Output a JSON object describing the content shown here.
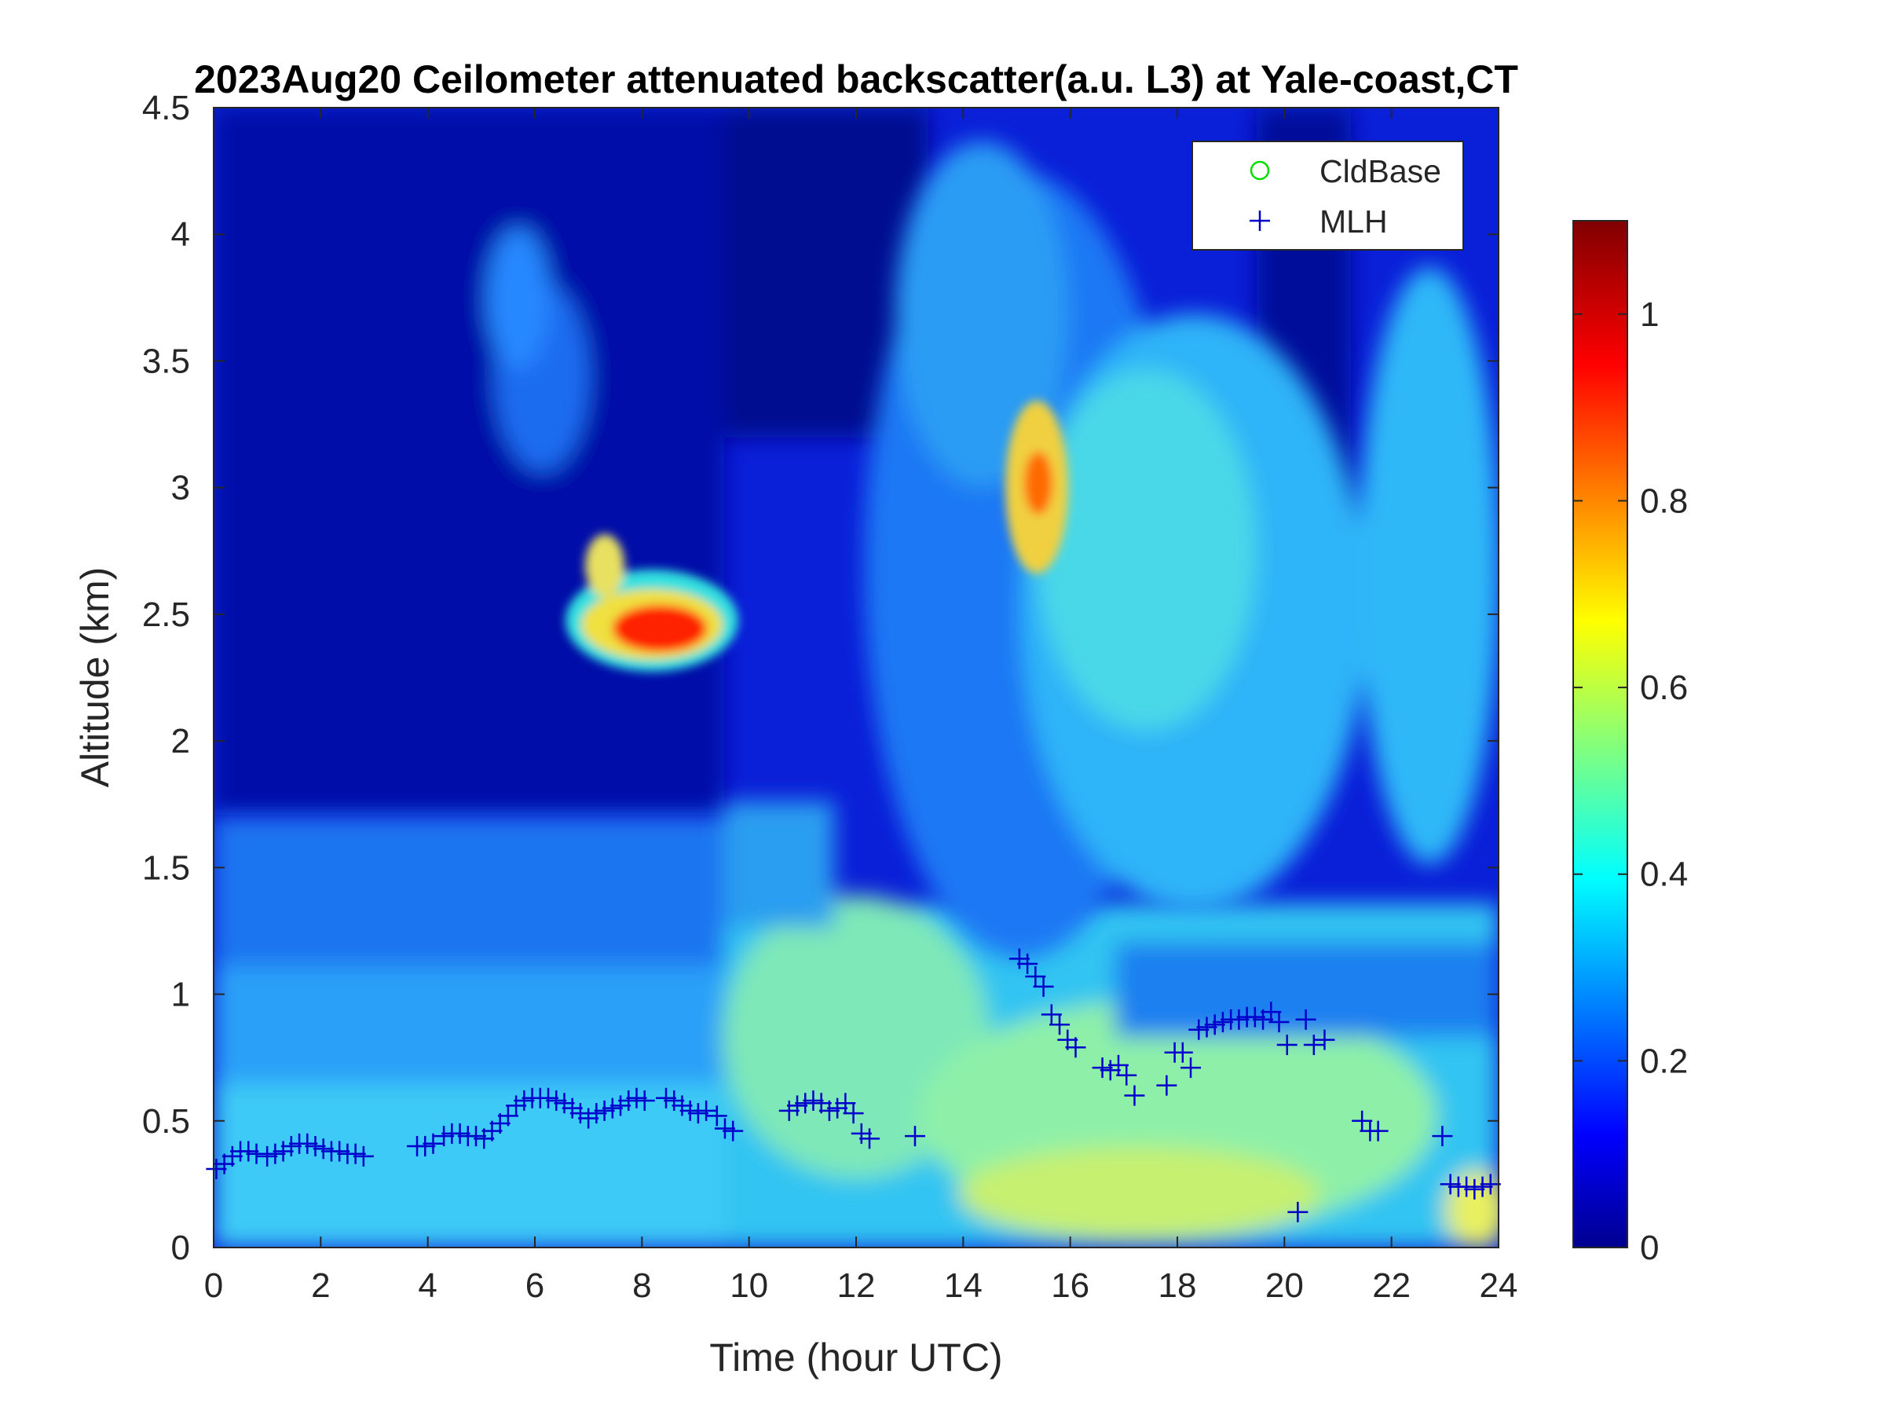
{
  "chart_data": {
    "type": "heatmap",
    "title": "2023Aug20 Ceilometer attenuated backscatter(a.u. L3) at Yale-coast,CT",
    "xlabel": "Time (hour UTC)",
    "ylabel": "Altitude (km)",
    "xlim": [
      0,
      24
    ],
    "ylim": [
      0,
      4.5
    ],
    "xticks": [
      "0",
      "2",
      "4",
      "6",
      "8",
      "10",
      "12",
      "14",
      "16",
      "18",
      "20",
      "22",
      "24"
    ],
    "yticks": [
      "0",
      "0.5",
      "1",
      "1.5",
      "2",
      "2.5",
      "3",
      "3.5",
      "4",
      "4.5"
    ],
    "colorbar": {
      "range": [
        0,
        1.1
      ],
      "ticks": [
        "0",
        "0.2",
        "0.4",
        "0.6",
        "0.8",
        "1"
      ],
      "colormap": "jet"
    },
    "legend": {
      "placement": "top-right",
      "entries": [
        {
          "label": "CldBase",
          "marker": "circle",
          "color": "#00e000"
        },
        {
          "label": "MLH",
          "marker": "plus",
          "color": "#0000cc"
        }
      ]
    },
    "backscatter_features": [
      {
        "feature": "elevated aerosol layer",
        "time_range": [
          7.0,
          9.3
        ],
        "altitude_range": [
          2.2,
          2.7
        ],
        "peak_value": 1.0
      },
      {
        "feature": "elevated plume",
        "time_range": [
          14.5,
          16.5
        ],
        "altitude_range": [
          2.6,
          3.6
        ],
        "peak_value": 0.85
      },
      {
        "feature": "residual layer",
        "time_range": [
          12.5,
          24
        ],
        "altitude_range": [
          1.9,
          4.5
        ],
        "peak_value": 0.5
      },
      {
        "feature": "boundary layer",
        "time_range": [
          0,
          24
        ],
        "altitude_range": [
          0,
          1.6
        ],
        "peak_value": 0.6
      }
    ],
    "series": [
      {
        "name": "MLH",
        "marker": "plus",
        "x": [
          0.05,
          0.2,
          0.35,
          0.5,
          0.65,
          0.8,
          1.0,
          1.15,
          1.3,
          1.45,
          1.6,
          1.75,
          1.9,
          2.05,
          2.2,
          2.35,
          2.5,
          2.65,
          2.8,
          3.8,
          3.95,
          4.1,
          4.3,
          4.45,
          4.6,
          4.75,
          4.9,
          5.05,
          5.2,
          5.35,
          5.5,
          5.65,
          5.8,
          5.95,
          6.1,
          6.25,
          6.4,
          6.55,
          6.7,
          6.85,
          7.0,
          7.15,
          7.3,
          7.45,
          7.6,
          7.75,
          7.9,
          8.05,
          8.45,
          8.6,
          8.75,
          8.9,
          9.05,
          9.2,
          9.4,
          9.55,
          9.7,
          10.75,
          10.9,
          11.05,
          11.2,
          11.35,
          11.5,
          11.65,
          11.8,
          11.95,
          12.1,
          12.25,
          13.1,
          15.05,
          15.2,
          15.35,
          15.5,
          15.65,
          15.8,
          15.95,
          16.1,
          16.6,
          16.75,
          16.9,
          17.05,
          17.2,
          17.8,
          17.95,
          18.1,
          18.25,
          18.4,
          18.55,
          18.7,
          18.85,
          19.0,
          19.15,
          19.3,
          19.45,
          19.6,
          19.75,
          19.9,
          20.05,
          20.25,
          20.4,
          20.55,
          20.75,
          21.45,
          21.6,
          21.75,
          22.95,
          23.1,
          23.25,
          23.4,
          23.55,
          23.7,
          23.85
        ],
        "y": [
          0.31,
          0.33,
          0.36,
          0.38,
          0.38,
          0.37,
          0.36,
          0.37,
          0.38,
          0.4,
          0.41,
          0.41,
          0.4,
          0.39,
          0.38,
          0.38,
          0.37,
          0.37,
          0.36,
          0.4,
          0.4,
          0.41,
          0.44,
          0.45,
          0.45,
          0.44,
          0.44,
          0.43,
          0.46,
          0.49,
          0.52,
          0.56,
          0.58,
          0.59,
          0.59,
          0.59,
          0.58,
          0.57,
          0.55,
          0.53,
          0.51,
          0.53,
          0.54,
          0.55,
          0.56,
          0.58,
          0.59,
          0.58,
          0.59,
          0.58,
          0.56,
          0.54,
          0.53,
          0.54,
          0.52,
          0.47,
          0.46,
          0.54,
          0.56,
          0.57,
          0.58,
          0.57,
          0.54,
          0.55,
          0.57,
          0.53,
          0.45,
          0.43,
          0.44,
          1.14,
          1.12,
          1.07,
          1.03,
          0.92,
          0.88,
          0.82,
          0.79,
          0.71,
          0.7,
          0.72,
          0.68,
          0.6,
          0.64,
          0.77,
          0.77,
          0.71,
          0.86,
          0.87,
          0.88,
          0.89,
          0.9,
          0.9,
          0.91,
          0.91,
          0.9,
          0.93,
          0.89,
          0.8,
          0.14,
          0.9,
          0.8,
          0.82,
          0.5,
          0.46,
          0.46,
          0.44,
          0.25,
          0.24,
          0.24,
          0.23,
          0.24,
          0.25
        ]
      },
      {
        "name": "CldBase",
        "marker": "circle",
        "x": [],
        "y": []
      }
    ]
  }
}
